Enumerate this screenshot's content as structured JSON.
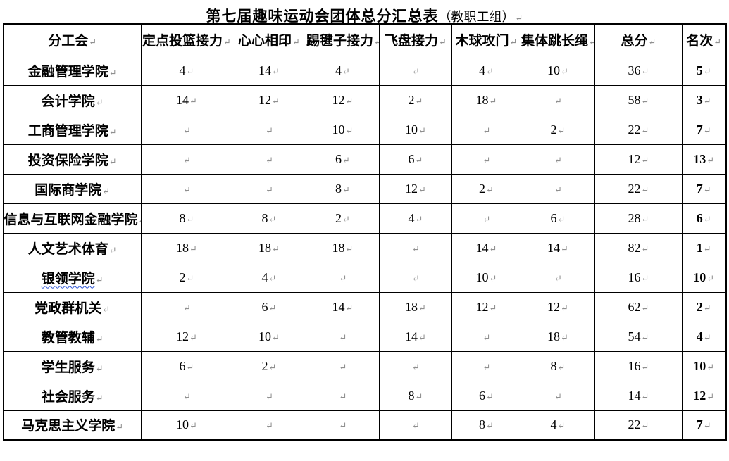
{
  "title": {
    "main": "第七届趣味运动会团体总分汇总表",
    "sub": "（教职工组）",
    "paragraph_mark": "↵"
  },
  "marks": {
    "end_of_cell": "↵"
  },
  "colors": {
    "text": "#000000",
    "paragraph_mark_gray": "#8f8f8f",
    "spellcheck_underline_blue": "#2f55d4",
    "table_border": "#000000",
    "page_background": "#ffffff"
  },
  "table": {
    "columns": [
      "分工会",
      "定点投篮接力",
      "心心相印",
      "踢毽子接力",
      "飞盘接力",
      "木球攻门",
      "集体跳长绳",
      "总分",
      "名次"
    ],
    "rows": [
      {
        "name": "金融管理学院",
        "spellcheck_underline": false,
        "scores": [
          "4",
          "14",
          "4",
          "",
          "4",
          "10"
        ],
        "total": "36",
        "rank": "5"
      },
      {
        "name": "会计学院",
        "spellcheck_underline": false,
        "scores": [
          "14",
          "12",
          "12",
          "2",
          "18",
          ""
        ],
        "total": "58",
        "rank": "3"
      },
      {
        "name": "工商管理学院",
        "spellcheck_underline": false,
        "scores": [
          "",
          "",
          "10",
          "10",
          "",
          "2"
        ],
        "total": "22",
        "rank": "7"
      },
      {
        "name": "投资保险学院",
        "spellcheck_underline": false,
        "scores": [
          "",
          "",
          "6",
          "6",
          "",
          ""
        ],
        "total": "12",
        "rank": "13"
      },
      {
        "name": "国际商学院",
        "spellcheck_underline": false,
        "scores": [
          "",
          "",
          "8",
          "12",
          "2",
          ""
        ],
        "total": "22",
        "rank": "7"
      },
      {
        "name": "信息与互联网金融学院",
        "spellcheck_underline": false,
        "scores": [
          "8",
          "8",
          "2",
          "4",
          "",
          "6"
        ],
        "total": "28",
        "rank": "6"
      },
      {
        "name": "人文艺术体育",
        "spellcheck_underline": false,
        "scores": [
          "18",
          "18",
          "18",
          "",
          "14",
          "14"
        ],
        "total": "82",
        "rank": "1"
      },
      {
        "name": "银领学院",
        "spellcheck_underline": true,
        "scores": [
          "2",
          "4",
          "",
          "",
          "10",
          ""
        ],
        "total": "16",
        "rank": "10"
      },
      {
        "name": "党政群机关",
        "spellcheck_underline": false,
        "scores": [
          "",
          "6",
          "14",
          "18",
          "12",
          "12"
        ],
        "total": "62",
        "rank": "2"
      },
      {
        "name": "教管教辅",
        "spellcheck_underline": false,
        "scores": [
          "12",
          "10",
          "",
          "14",
          "",
          "18"
        ],
        "total": "54",
        "rank": "4"
      },
      {
        "name": "学生服务",
        "spellcheck_underline": false,
        "scores": [
          "6",
          "2",
          "",
          "",
          "",
          "8"
        ],
        "total": "16",
        "rank": "10"
      },
      {
        "name": "社会服务",
        "spellcheck_underline": false,
        "scores": [
          "",
          "",
          "",
          "8",
          "6",
          ""
        ],
        "total": "14",
        "rank": "12"
      },
      {
        "name": "马克思主义学院",
        "spellcheck_underline": false,
        "scores": [
          "10",
          "",
          "",
          "",
          "8",
          "4"
        ],
        "total": "22",
        "rank": "7"
      }
    ]
  }
}
